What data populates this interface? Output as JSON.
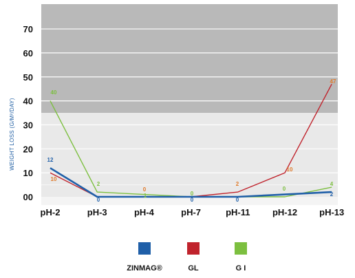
{
  "chart_data": {
    "type": "line",
    "categories": [
      "pH-2",
      "pH-3",
      "pH-4",
      "pH-7",
      "pH-11",
      "pH-12",
      "pH-13"
    ],
    "ylabel": "WEIGHT LOSS (G/M²/DAY)",
    "yticks": [
      "00",
      "10",
      "20",
      "30",
      "40",
      "50",
      "60",
      "70"
    ],
    "ylim": [
      0,
      75
    ],
    "series": [
      {
        "name": "ZINMAG®",
        "color": "#1f5fa8",
        "values": [
          12,
          0,
          0,
          0,
          0,
          1,
          2
        ],
        "labels": [
          "12",
          "0",
          "",
          "0",
          "0",
          "",
          "2"
        ]
      },
      {
        "name": "GL",
        "color": "#c0232c",
        "values": [
          10,
          0,
          0,
          0,
          2,
          10,
          47
        ],
        "labels": [
          "10",
          "",
          "0",
          "",
          "2",
          "10",
          "47"
        ]
      },
      {
        "name": "G I",
        "color": "#7cbf3f",
        "values": [
          40,
          2,
          1,
          0,
          0,
          0,
          4
        ],
        "labels": [
          "40",
          "2",
          "1",
          "0",
          "",
          "0",
          "4"
        ]
      }
    ]
  }
}
